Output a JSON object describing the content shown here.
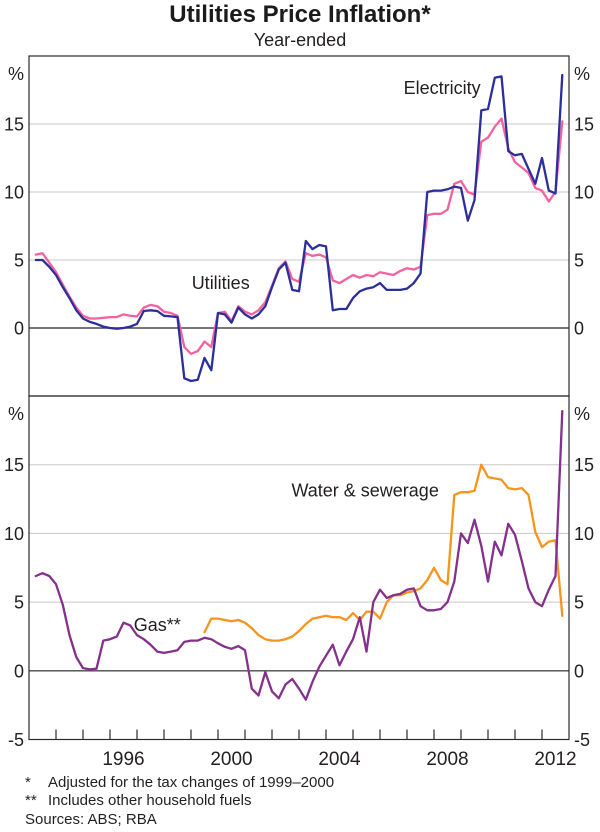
{
  "title": "Utilities Price Inflation*",
  "subtitle": "Year-ended",
  "footnotes": [
    {
      "marker": "*",
      "text": "Adjusted for the tax changes of 1999–2000"
    },
    {
      "marker": "**",
      "text": "Includes other household fuels"
    }
  ],
  "sources": "Sources: ABS; RBA",
  "chart_data": {
    "type": "line",
    "title": "Utilities Price Inflation*",
    "subtitle": "Year-ended",
    "frequency": "quarterly",
    "x_axis": {
      "range": [
        1993,
        2013
      ],
      "tick_interval_years": 1,
      "year_labels": [
        1996,
        2000,
        2004,
        2008,
        2012
      ]
    },
    "style": {
      "grid_color": "#c9c9c9",
      "zero_line_color": "#4a4a4a",
      "border_color": "#2b2b2b",
      "text_color": "#231f20"
    },
    "panels": [
      {
        "position": "top",
        "unit_label": "%",
        "ylim": [
          -5,
          20
        ],
        "yticks": [
          {
            "value": 15,
            "label": "15"
          },
          {
            "value": 10,
            "label": "10"
          },
          {
            "value": 5,
            "label": "5"
          },
          {
            "value": 0,
            "label": "0"
          }
        ],
        "series": [
          {
            "name": "utilities",
            "label": "Utilities",
            "color": "#f4619f",
            "x_start": 1993.25,
            "x_step": 0.25,
            "label_at": [
              2000.1,
              2.85
            ],
            "values": [
              5.4,
              5.5,
              4.8,
              4.1,
              3.2,
              2.3,
              1.5,
              0.9,
              0.7,
              0.7,
              0.75,
              0.8,
              0.8,
              1.0,
              0.9,
              0.85,
              1.5,
              1.7,
              1.6,
              1.2,
              1.1,
              0.9,
              -1.4,
              -1.9,
              -1.7,
              -1.0,
              -1.4,
              1.1,
              1.2,
              0.5,
              1.6,
              1.2,
              1.0,
              1.3,
              1.9,
              3.1,
              4.4,
              4.9,
              3.6,
              3.4,
              5.5,
              5.3,
              5.4,
              5.2,
              3.5,
              3.3,
              3.6,
              3.9,
              3.7,
              3.9,
              3.8,
              4.1,
              4.0,
              3.9,
              4.2,
              4.4,
              4.3,
              4.5,
              8.3,
              8.4,
              8.4,
              8.7,
              10.6,
              10.8,
              10.0,
              9.8,
              13.7,
              14.0,
              14.8,
              15.4,
              13.2,
              12.2,
              11.8,
              11.4,
              10.3,
              10.1,
              9.3,
              10.0,
              15.2
            ]
          },
          {
            "name": "electricity",
            "label": "Electricity",
            "color": "#2b2e9b",
            "x_start": 1993.25,
            "x_step": 0.25,
            "label_at": [
              2008.3,
              17.2
            ],
            "values": [
              5.0,
              5.0,
              4.5,
              3.9,
              3.0,
              2.2,
              1.3,
              0.7,
              0.45,
              0.3,
              0.1,
              0.0,
              -0.05,
              0.0,
              0.1,
              0.3,
              1.25,
              1.3,
              1.25,
              0.9,
              0.85,
              0.8,
              -3.7,
              -3.9,
              -3.8,
              -2.2,
              -3.1,
              1.1,
              1.0,
              0.4,
              1.5,
              1.0,
              0.7,
              1.0,
              1.6,
              3.0,
              4.3,
              4.8,
              2.8,
              2.7,
              6.4,
              5.8,
              6.1,
              6.0,
              1.3,
              1.4,
              1.4,
              2.2,
              2.7,
              2.9,
              3.0,
              3.3,
              2.8,
              2.8,
              2.8,
              2.9,
              3.3,
              4.0,
              10.0,
              10.1,
              10.1,
              10.2,
              10.4,
              10.3,
              7.9,
              9.4,
              16.0,
              16.1,
              18.4,
              18.5,
              13.0,
              12.7,
              12.8,
              11.7,
              10.6,
              12.5,
              10.1,
              9.9,
              18.6
            ]
          }
        ]
      },
      {
        "position": "bottom",
        "unit_label": "%",
        "ylim": [
          -5,
          20
        ],
        "yticks": [
          {
            "value": 15,
            "label": "15"
          },
          {
            "value": 10,
            "label": "10"
          },
          {
            "value": 5,
            "label": "5"
          },
          {
            "value": 0,
            "label": "0"
          },
          {
            "value": -5,
            "label": "-5"
          }
        ],
        "series": [
          {
            "name": "water-sewerage",
            "label": "Water & sewerage",
            "color": "#f7941d",
            "x_start": 1999.5,
            "x_step": 0.25,
            "label_at": [
              2005.45,
              12.7
            ],
            "values": [
              2.8,
              3.8,
              3.8,
              3.7,
              3.6,
              3.7,
              3.5,
              3.1,
              2.6,
              2.3,
              2.2,
              2.2,
              2.3,
              2.5,
              2.9,
              3.4,
              3.8,
              3.9,
              4.0,
              3.9,
              3.9,
              3.7,
              4.2,
              3.7,
              4.3,
              4.3,
              3.8,
              5.0,
              5.5,
              5.5,
              5.7,
              5.8,
              6.0,
              6.6,
              7.5,
              6.6,
              6.3,
              12.8,
              13.0,
              13.0,
              13.1,
              15.0,
              14.1,
              14.0,
              13.9,
              13.3,
              13.2,
              13.3,
              12.8,
              10.1,
              9.0,
              9.4,
              9.5,
              4.0
            ]
          },
          {
            "name": "gas",
            "label": "Gas**",
            "color": "#84308c",
            "x_start": 1993.25,
            "x_step": 0.25,
            "label_at": [
              1997.75,
              2.9
            ],
            "values": [
              6.9,
              7.1,
              6.9,
              6.3,
              4.8,
              2.6,
              1.0,
              0.2,
              0.1,
              0.15,
              2.2,
              2.3,
              2.5,
              3.5,
              3.3,
              2.6,
              2.3,
              1.9,
              1.4,
              1.3,
              1.4,
              1.5,
              2.1,
              2.2,
              2.2,
              2.4,
              2.3,
              2.0,
              1.75,
              1.6,
              1.8,
              1.5,
              -1.3,
              -1.8,
              -0.1,
              -1.5,
              -2.0,
              -1.0,
              -0.6,
              -1.3,
              -2.1,
              -0.8,
              0.3,
              1.1,
              1.9,
              0.4,
              1.4,
              2.3,
              3.9,
              1.4,
              5.0,
              5.9,
              5.3,
              5.5,
              5.6,
              5.9,
              6.0,
              4.7,
              4.4,
              4.4,
              4.5,
              5.0,
              6.5,
              10.0,
              9.3,
              11.0,
              9.1,
              6.5,
              9.4,
              8.4,
              10.7,
              9.9,
              8.0,
              6.0,
              5.0,
              4.7,
              5.9,
              6.9,
              18.9
            ]
          }
        ]
      }
    ]
  }
}
